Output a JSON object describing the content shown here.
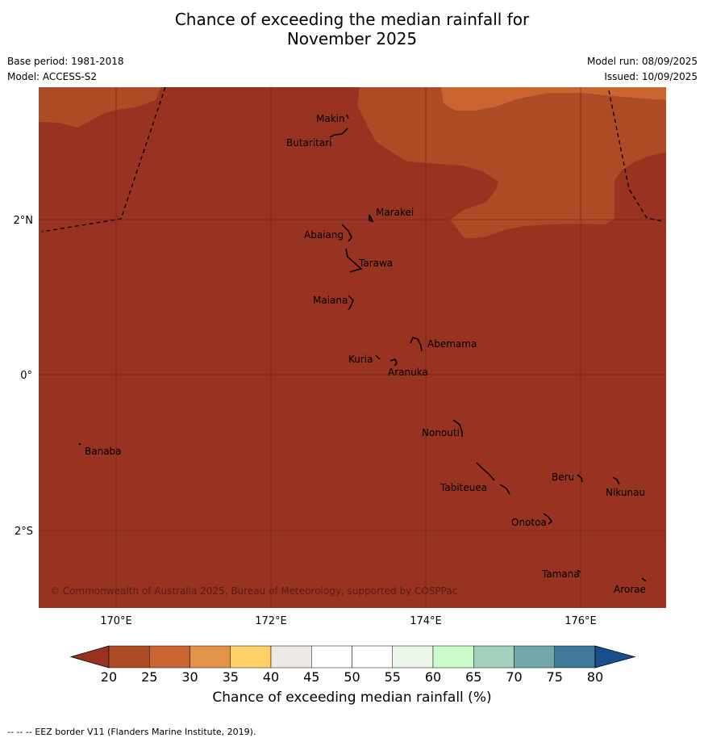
{
  "title_line1": "Chance of exceeding the median rainfall for",
  "title_line2": "November 2025",
  "meta": {
    "base_period": "Base period: 1981-2018",
    "model": "Model: ACCESS-S2",
    "model_run": "Model run: 08/09/2025",
    "issued": "Issued: 10/09/2025"
  },
  "map": {
    "copyright": "© Commonwealth of Australia 2025, Bureau of Meteorology, supported by COSPPac",
    "lon_ticks": [
      "170°E",
      "172°E",
      "174°E",
      "176°E"
    ],
    "lat_ticks": [
      "2°N",
      "0°",
      "2°S"
    ],
    "places": [
      "Makin",
      "Butaritari",
      "Marakei",
      "Abaiang",
      "Tarawa",
      "Maiana",
      "Abemama",
      "Kuria",
      "Aranuka",
      "Nonouti",
      "Banaba",
      "Tabiteuea",
      "Beru",
      "Nikunau",
      "Onotoa",
      "Tamana",
      "Arorae"
    ],
    "colors": {
      "below_20": "#973320",
      "20_25": "#ad4b27",
      "25_30": "#ca6531",
      "ocean_land_outline": "#000000"
    }
  },
  "colorbar": {
    "label": "Chance of exceeding median rainfall (%)",
    "ticks": [
      "20",
      "25",
      "30",
      "35",
      "40",
      "45",
      "50",
      "55",
      "60",
      "65",
      "70",
      "75",
      "80"
    ],
    "colors": [
      "#973320",
      "#ad4b27",
      "#ca6531",
      "#e4944a",
      "#fdd068",
      "#ece8e4",
      "#ffffff",
      "#ffffff",
      "#ebf6eb",
      "#ccfccc",
      "#a1d1bc",
      "#72a8a9",
      "#3f7899",
      "#17508c"
    ]
  },
  "footnote": "--  --  -- EEZ border V11 (Flanders Marine Institute, 2019)."
}
